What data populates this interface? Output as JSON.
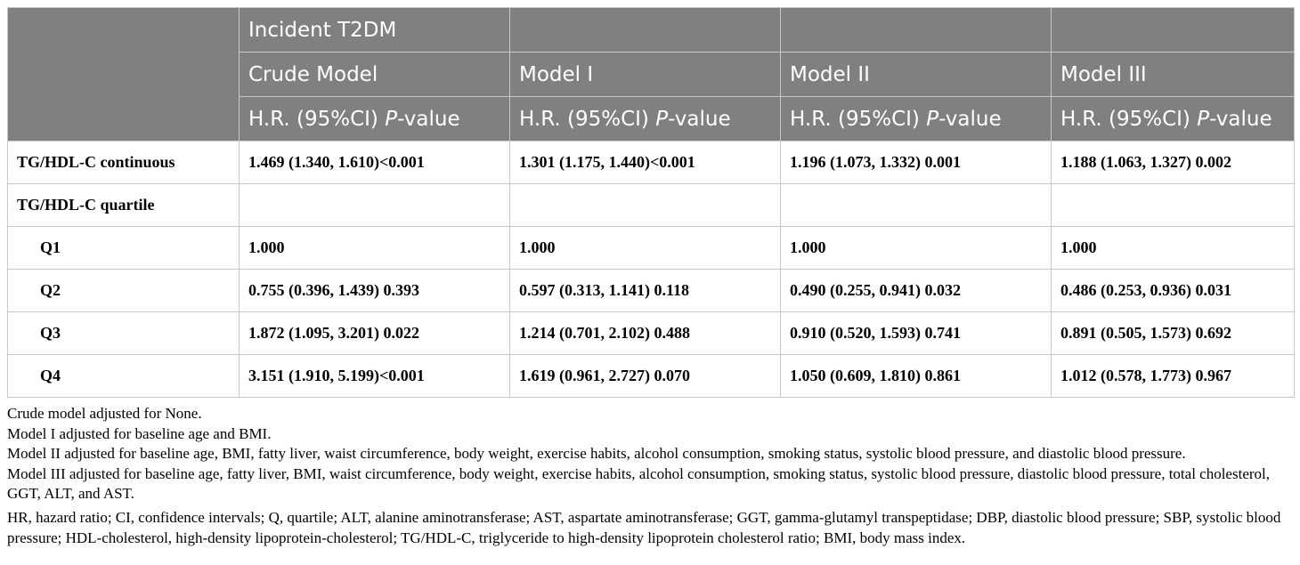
{
  "header": {
    "outcome": "Incident T2DM",
    "models": [
      "Crude Model",
      "Model I",
      "Model II",
      "Model III"
    ],
    "metric_prefix": "H.R. (95%CI) ",
    "metric_italic": "P",
    "metric_suffix": "-value"
  },
  "rows": [
    {
      "label": "TG/HDL-C continuous",
      "values": [
        "1.469 (1.340, 1.610)<0.001",
        "1.301 (1.175, 1.440)<0.001",
        "1.196 (1.073, 1.332) 0.001",
        "1.188 (1.063, 1.327) 0.002"
      ]
    },
    {
      "label": "TG/HDL-C quartile",
      "values": [
        "",
        "",
        "",
        ""
      ]
    },
    {
      "label": "Q1",
      "values": [
        "1.000",
        "1.000",
        "1.000",
        "1.000"
      ]
    },
    {
      "label": "Q2",
      "values": [
        "0.755 (0.396, 1.439) 0.393",
        "0.597 (0.313, 1.141) 0.118",
        "0.490 (0.255, 0.941) 0.032",
        "0.486 (0.253, 0.936) 0.031"
      ]
    },
    {
      "label": "Q3",
      "values": [
        "1.872 (1.095, 3.201) 0.022",
        "1.214 (0.701, 2.102) 0.488",
        "0.910 (0.520, 1.593) 0.741",
        "0.891 (0.505, 1.573) 0.692"
      ]
    },
    {
      "label": "Q4",
      "values": [
        "3.151 (1.910, 5.199)<0.001",
        "1.619 (0.961, 2.727) 0.070",
        "1.050 (0.609, 1.810) 0.861",
        "1.012 (0.578, 1.773) 0.967"
      ]
    }
  ],
  "footnotes": [
    "Crude model adjusted for None.",
    "Model I adjusted for baseline age and BMI.",
    "Model II adjusted for baseline age, BMI, fatty liver, waist circumference, body weight, exercise habits, alcohol consumption, smoking status, systolic blood pressure, and diastolic blood pressure.",
    "Model III adjusted for baseline age, fatty liver, BMI, waist circumference, body weight, exercise habits, alcohol consumption, smoking status, systolic blood pressure, diastolic blood pressure, total cholesterol, GGT, ALT, and AST.",
    "HR, hazard ratio; CI, confidence intervals; Q, quartile; ALT, alanine aminotransferase; AST, aspartate aminotransferase; GGT, gamma-glutamyl transpeptidase; DBP, diastolic blood pressure; SBP, systolic blood pressure; HDL-cholesterol, high-density lipoprotein-cholesterol; TG/HDL-C, triglyceride to high-density lipoprotein cholesterol ratio; BMI, body mass index."
  ]
}
